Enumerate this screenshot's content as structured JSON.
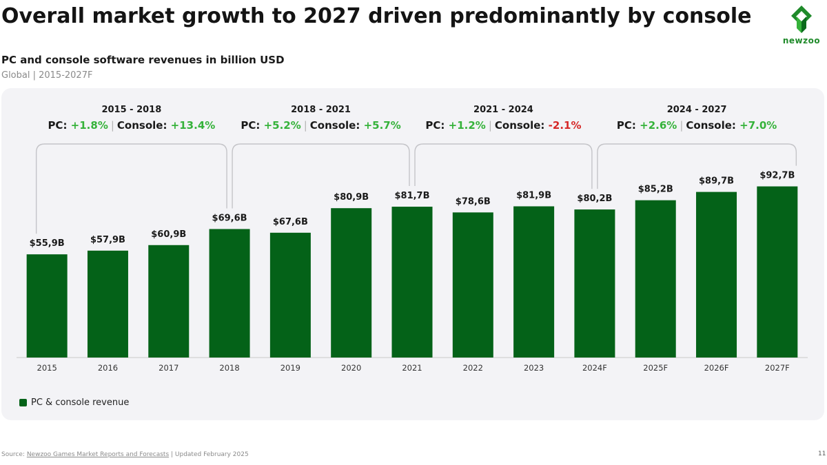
{
  "header": {
    "title": "Overall market growth to 2027 driven predominantly by console",
    "logo_text": "newzoo"
  },
  "subtitle": "PC and console software revenues in billion USD",
  "scope": "Global | 2015-2027F",
  "periods": [
    {
      "range": "2015 - 2018",
      "pc_label": "PC:",
      "pc": "+1.8%",
      "sep": "|",
      "console_label": "Console:",
      "console": "+13.4%",
      "pc_dir": "pos",
      "console_dir": "pos"
    },
    {
      "range": "2018 - 2021",
      "pc_label": "PC:",
      "pc": "+5.2%",
      "sep": "|",
      "console_label": "Console:",
      "console": "+5.7%",
      "pc_dir": "pos",
      "console_dir": "pos"
    },
    {
      "range": "2021 - 2024",
      "pc_label": "PC:",
      "pc": "+1.2%",
      "sep": "|",
      "console_label": "Console:",
      "console": "-2.1%",
      "pc_dir": "pos",
      "console_dir": "neg"
    },
    {
      "range": "2024 - 2027",
      "pc_label": "PC:",
      "pc": "+2.6%",
      "sep": "|",
      "console_label": "Console:",
      "console": "+7.0%",
      "pc_dir": "pos",
      "console_dir": "pos"
    }
  ],
  "chart_data": {
    "type": "bar",
    "categories": [
      "2015",
      "2016",
      "2017",
      "2018",
      "2019",
      "2020",
      "2021",
      "2022",
      "2023",
      "2024F",
      "2025F",
      "2026F",
      "2027F"
    ],
    "values": [
      55.9,
      57.9,
      60.9,
      69.6,
      67.6,
      80.9,
      81.7,
      78.6,
      81.9,
      80.2,
      85.2,
      89.7,
      92.7
    ],
    "labels": [
      "$55,9B",
      "$57,9B",
      "$60,9B",
      "$69,6B",
      "$67,6B",
      "$80,9B",
      "$81,7B",
      "$78,6B",
      "$81,9B",
      "$80,2B",
      "$85,2B",
      "$89,7B",
      "$92,7B"
    ],
    "legend": [
      "PC & console revenue"
    ],
    "colors": {
      "bar": "#046218",
      "positive": "#35b23a",
      "negative": "#d62828"
    }
  },
  "footer": {
    "source_prefix": "Source: ",
    "source_link": "Newzoo Games Market Reports and Forecasts",
    "source_suffix": " | Updated February 2025",
    "page": "11"
  }
}
